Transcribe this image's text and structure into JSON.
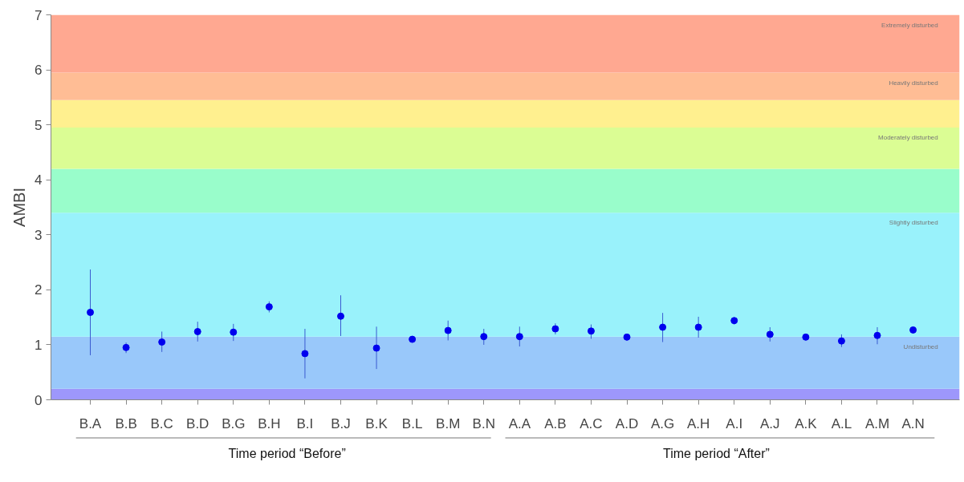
{
  "chart_data": {
    "type": "scatter",
    "ylabel": "AMBI",
    "categories": [
      "B.A",
      "B.B",
      "B.C",
      "B.D",
      "B.G",
      "B.H",
      "B.I",
      "B.J",
      "B.K",
      "B.L",
      "B.M",
      "B.N",
      "A.A",
      "A.B",
      "A.C",
      "A.D",
      "A.G",
      "A.H",
      "A.I",
      "A.J",
      "A.K",
      "A.L",
      "A.M",
      "A.N"
    ],
    "series": [
      {
        "color": "#0000ee",
        "values": [
          1.59,
          0.95,
          1.05,
          1.24,
          1.23,
          1.69,
          0.84,
          1.52,
          0.94,
          1.1,
          1.26,
          1.15,
          1.15,
          1.29,
          1.25,
          1.14,
          1.32,
          1.32,
          1.44,
          1.19,
          1.14,
          1.07,
          1.17,
          1.27
        ],
        "errors": [
          [
            0.81,
            2.37
          ],
          [
            0.85,
            1.04
          ],
          [
            0.87,
            1.24
          ],
          [
            1.06,
            1.42
          ],
          [
            1.07,
            1.38
          ],
          [
            1.59,
            1.79
          ],
          [
            0.39,
            1.29
          ],
          [
            1.16,
            1.9
          ],
          [
            0.56,
            1.33
          ],
          null,
          [
            1.08,
            1.44
          ],
          [
            1.0,
            1.29
          ],
          [
            0.97,
            1.33
          ],
          [
            1.19,
            1.39
          ],
          [
            1.11,
            1.37
          ],
          null,
          [
            1.05,
            1.58
          ],
          [
            1.13,
            1.51
          ],
          [
            1.37,
            1.49
          ],
          [
            1.06,
            1.32
          ],
          null,
          [
            0.96,
            1.19
          ],
          [
            1.01,
            1.32
          ],
          null
        ]
      }
    ],
    "marker": "circle",
    "ylim": [
      0,
      7
    ],
    "yticks": [
      0,
      1,
      2,
      3,
      4,
      5,
      6,
      7
    ],
    "bands": [
      {
        "axis": "y",
        "from": 0,
        "to": 0.2,
        "color": "#9d97fb"
      },
      {
        "axis": "y",
        "from": 0.2,
        "to": 1.15,
        "label": "Undisturbed",
        "color": "#99c8fa"
      },
      {
        "axis": "y",
        "from": 1.15,
        "to": 3.4,
        "label": "Slightly disturbed",
        "color": "#99f2fb"
      },
      {
        "axis": "y",
        "from": 3.4,
        "to": 4.2,
        "color": "#99fdcb"
      },
      {
        "axis": "y",
        "from": 4.2,
        "to": 4.95,
        "label": "Moderately disturbed",
        "color": "#dbfd94"
      },
      {
        "axis": "y",
        "from": 4.95,
        "to": 5.45,
        "color": "#fff08f"
      },
      {
        "axis": "y",
        "from": 5.45,
        "to": 5.95,
        "label": "Heavily disturbed",
        "color": "#ffbd95"
      },
      {
        "axis": "y",
        "from": 5.95,
        "to": 7,
        "label": "Extremely disturbed",
        "color": "#ffa891"
      }
    ],
    "annotations": [
      "Time period “Before”",
      "Time period “After”"
    ],
    "grid": false
  }
}
